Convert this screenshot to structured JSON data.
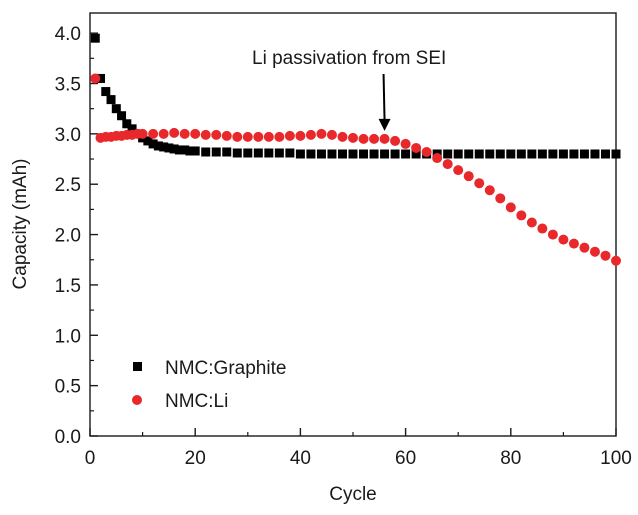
{
  "chart_data": {
    "type": "scatter",
    "title": "",
    "xlabel": "Cycle",
    "ylabel": "Capacity (mAh)",
    "xlim": [
      0,
      100
    ],
    "ylim": [
      0,
      4.2
    ],
    "xticks": [
      "0",
      "20",
      "40",
      "60",
      "80",
      "100"
    ],
    "yticks": [
      "0.0",
      "0.5",
      "1.0",
      "1.5",
      "2.0",
      "2.5",
      "3.0",
      "3.5",
      "4.0"
    ],
    "grid": false,
    "legend_position": "bottom-left",
    "annotation": {
      "text": "Li passivation from SEI",
      "arrow_x": 56,
      "arrow_y": 2.95
    },
    "series": [
      {
        "name": "NMC:Graphite",
        "marker": "square",
        "color": "#000000",
        "x": [
          1,
          2,
          3,
          4,
          5,
          6,
          7,
          8,
          9,
          10,
          11,
          12,
          13,
          14,
          15,
          16,
          17,
          18,
          19,
          20,
          22,
          24,
          26,
          28,
          30,
          32,
          34,
          36,
          38,
          40,
          42,
          44,
          46,
          48,
          50,
          52,
          54,
          56,
          58,
          60,
          62,
          64,
          66,
          68,
          70,
          72,
          74,
          76,
          78,
          80,
          82,
          84,
          86,
          88,
          90,
          92,
          94,
          96,
          98,
          100
        ],
        "y": [
          3.95,
          3.55,
          3.42,
          3.34,
          3.25,
          3.18,
          3.1,
          3.05,
          3.0,
          2.96,
          2.93,
          2.9,
          2.88,
          2.87,
          2.86,
          2.85,
          2.84,
          2.84,
          2.83,
          2.83,
          2.82,
          2.82,
          2.82,
          2.81,
          2.81,
          2.81,
          2.81,
          2.81,
          2.81,
          2.8,
          2.8,
          2.8,
          2.8,
          2.8,
          2.8,
          2.8,
          2.8,
          2.8,
          2.8,
          2.8,
          2.8,
          2.8,
          2.8,
          2.8,
          2.8,
          2.8,
          2.8,
          2.8,
          2.8,
          2.8,
          2.8,
          2.8,
          2.8,
          2.8,
          2.8,
          2.8,
          2.8,
          2.8,
          2.8,
          2.8
        ]
      },
      {
        "name": "NMC:Li",
        "marker": "circle",
        "color": "#e8282b",
        "x": [
          1,
          2,
          3,
          4,
          5,
          6,
          7,
          8,
          9,
          10,
          12,
          14,
          16,
          18,
          20,
          22,
          24,
          26,
          28,
          30,
          32,
          34,
          36,
          38,
          40,
          42,
          44,
          46,
          48,
          50,
          52,
          54,
          56,
          58,
          60,
          62,
          64,
          66,
          68,
          70,
          72,
          74,
          76,
          78,
          80,
          82,
          84,
          86,
          88,
          90,
          92,
          94,
          96,
          98,
          100
        ],
        "y": [
          3.55,
          2.96,
          2.97,
          2.97,
          2.98,
          2.98,
          2.99,
          2.99,
          3.0,
          3.0,
          3.0,
          3.0,
          3.01,
          3.0,
          3.0,
          2.99,
          2.99,
          2.98,
          2.97,
          2.97,
          2.97,
          2.97,
          2.97,
          2.98,
          2.98,
          2.99,
          3.0,
          2.99,
          2.97,
          2.96,
          2.95,
          2.95,
          2.95,
          2.93,
          2.9,
          2.86,
          2.82,
          2.76,
          2.7,
          2.64,
          2.58,
          2.51,
          2.44,
          2.36,
          2.27,
          2.19,
          2.12,
          2.06,
          2.0,
          1.95,
          1.91,
          1.87,
          1.83,
          1.79,
          1.74
        ]
      }
    ]
  }
}
